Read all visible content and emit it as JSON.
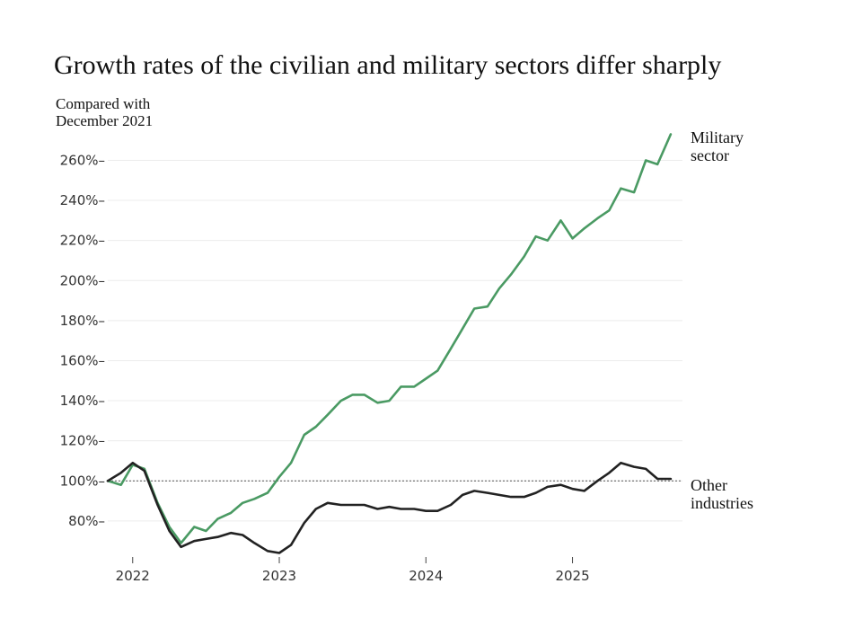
{
  "chart_data": {
    "type": "line",
    "title": "Growth rates of the civilian and military sectors differ sharply",
    "ylabel": "Compared with December 2021",
    "ylim": [
      62,
      275
    ],
    "yticks": [
      80,
      100,
      120,
      140,
      160,
      180,
      200,
      220,
      240,
      260
    ],
    "ytick_labels": [
      "80%–",
      "100%–",
      "120%–",
      "140%–",
      "160%–",
      "180%–",
      "200%–",
      "220%–",
      "240%–",
      "260%–"
    ],
    "xlim": [
      2021.83,
      2025.75
    ],
    "xticks": [
      2022,
      2023,
      2024,
      2025
    ],
    "xtick_labels": [
      "2022",
      "2023",
      "2024",
      "2025"
    ],
    "reference_line": 100,
    "grid": true,
    "series": [
      {
        "name": "Military sector",
        "label_lines": [
          "Military",
          "sector"
        ],
        "color": "#4a9a63",
        "points": [
          [
            2021.83,
            100
          ],
          [
            2021.92,
            98
          ],
          [
            2022.0,
            108
          ],
          [
            2022.08,
            106
          ],
          [
            2022.17,
            89
          ],
          [
            2022.25,
            77
          ],
          [
            2022.33,
            69
          ],
          [
            2022.42,
            77
          ],
          [
            2022.5,
            75
          ],
          [
            2022.58,
            81
          ],
          [
            2022.67,
            84
          ],
          [
            2022.75,
            89
          ],
          [
            2022.83,
            91
          ],
          [
            2022.92,
            94
          ],
          [
            2023.0,
            102
          ],
          [
            2023.08,
            109
          ],
          [
            2023.17,
            123
          ],
          [
            2023.25,
            127
          ],
          [
            2023.33,
            133
          ],
          [
            2023.42,
            140
          ],
          [
            2023.5,
            143
          ],
          [
            2023.58,
            143
          ],
          [
            2023.67,
            139
          ],
          [
            2023.75,
            140
          ],
          [
            2023.83,
            147
          ],
          [
            2023.92,
            147
          ],
          [
            2024.0,
            151
          ],
          [
            2024.08,
            155
          ],
          [
            2024.17,
            166
          ],
          [
            2024.25,
            176
          ],
          [
            2024.33,
            186
          ],
          [
            2024.42,
            187
          ],
          [
            2024.5,
            196
          ],
          [
            2024.58,
            203
          ],
          [
            2024.67,
            212
          ],
          [
            2024.75,
            222
          ],
          [
            2024.83,
            220
          ],
          [
            2024.92,
            230
          ],
          [
            2025.0,
            221
          ],
          [
            2025.08,
            226
          ],
          [
            2025.17,
            231
          ],
          [
            2025.25,
            235
          ],
          [
            2025.33,
            246
          ],
          [
            2025.42,
            244
          ],
          [
            2025.5,
            260
          ],
          [
            2025.58,
            258
          ],
          [
            2025.67,
            273
          ]
        ]
      },
      {
        "name": "Other industries",
        "label_lines": [
          "Other",
          "industries"
        ],
        "color": "#222222",
        "points": [
          [
            2021.83,
            100
          ],
          [
            2021.92,
            104
          ],
          [
            2022.0,
            109
          ],
          [
            2022.08,
            105
          ],
          [
            2022.17,
            88
          ],
          [
            2022.25,
            75
          ],
          [
            2022.33,
            67
          ],
          [
            2022.42,
            70
          ],
          [
            2022.5,
            71
          ],
          [
            2022.58,
            72
          ],
          [
            2022.67,
            74
          ],
          [
            2022.75,
            73
          ],
          [
            2022.83,
            69
          ],
          [
            2022.92,
            65
          ],
          [
            2023.0,
            64
          ],
          [
            2023.08,
            68
          ],
          [
            2023.17,
            79
          ],
          [
            2023.25,
            86
          ],
          [
            2023.33,
            89
          ],
          [
            2023.42,
            88
          ],
          [
            2023.5,
            88
          ],
          [
            2023.58,
            88
          ],
          [
            2023.67,
            86
          ],
          [
            2023.75,
            87
          ],
          [
            2023.83,
            86
          ],
          [
            2023.92,
            86
          ],
          [
            2024.0,
            85
          ],
          [
            2024.08,
            85
          ],
          [
            2024.17,
            88
          ],
          [
            2024.25,
            93
          ],
          [
            2024.33,
            95
          ],
          [
            2024.42,
            94
          ],
          [
            2024.5,
            93
          ],
          [
            2024.58,
            92
          ],
          [
            2024.67,
            92
          ],
          [
            2024.75,
            94
          ],
          [
            2024.83,
            97
          ],
          [
            2024.92,
            98
          ],
          [
            2025.0,
            96
          ],
          [
            2025.08,
            95
          ],
          [
            2025.17,
            100
          ],
          [
            2025.25,
            104
          ],
          [
            2025.33,
            109
          ],
          [
            2025.42,
            107
          ],
          [
            2025.5,
            106
          ],
          [
            2025.58,
            101
          ],
          [
            2025.67,
            101
          ]
        ]
      }
    ]
  }
}
